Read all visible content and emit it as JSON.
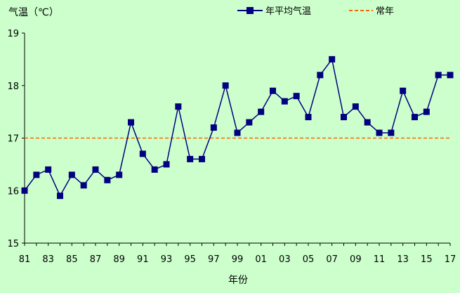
{
  "colors": {
    "background": "#ccffcc",
    "series": "#000080",
    "normal_line": "#ff6600",
    "axis": "#000000"
  },
  "chart_data": {
    "type": "line",
    "ylabel": "气温（℃）",
    "xlabel": "年份",
    "ylim": [
      15,
      19
    ],
    "yticks": [
      "15",
      "16",
      "17",
      "18",
      "19"
    ],
    "x_tick_labels": [
      "81",
      "83",
      "85",
      "87",
      "89",
      "91",
      "93",
      "95",
      "97",
      "99",
      "01",
      "03",
      "05",
      "07",
      "09",
      "11",
      "13",
      "15",
      "17"
    ],
    "x": [
      "1981",
      "1982",
      "1983",
      "1984",
      "1985",
      "1986",
      "1987",
      "1988",
      "1989",
      "1990",
      "1991",
      "1992",
      "1993",
      "1994",
      "1995",
      "1996",
      "1997",
      "1998",
      "1999",
      "2000",
      "2001",
      "2002",
      "2003",
      "2004",
      "2005",
      "2006",
      "2007",
      "2008",
      "2009",
      "2010",
      "2011",
      "2012",
      "2013",
      "2014",
      "2015",
      "2016",
      "2017"
    ],
    "series": [
      {
        "name": "年平均气温",
        "values": [
          16.0,
          16.3,
          16.4,
          15.9,
          16.3,
          16.1,
          16.4,
          16.2,
          16.3,
          17.3,
          16.7,
          16.4,
          16.5,
          17.6,
          16.6,
          16.6,
          17.2,
          18.0,
          17.1,
          17.3,
          17.5,
          17.9,
          17.7,
          17.8,
          17.4,
          18.2,
          18.5,
          17.4,
          17.6,
          17.3,
          17.1,
          17.1,
          17.9,
          17.4,
          17.5,
          18.2,
          18.2
        ]
      }
    ],
    "reference_line": {
      "name": "常年",
      "value": 17.0
    },
    "legend": {
      "placement": "top-right"
    },
    "grid": false
  }
}
